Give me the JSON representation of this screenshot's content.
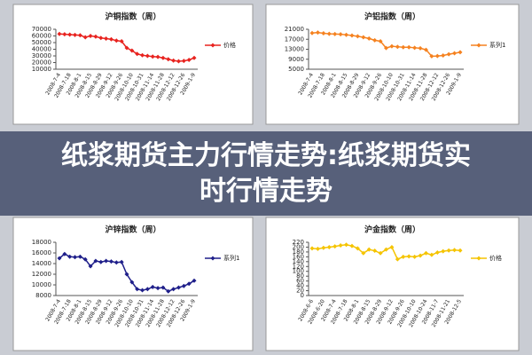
{
  "overlay_title": "纸浆期货主力行情走势:纸浆期货实时行情走势",
  "chart_data": [
    {
      "type": "line",
      "title": "沪铜指数（周）",
      "categories": [
        "2008-7-4",
        null,
        "2008-7-18",
        null,
        "2008-8-1",
        null,
        "2008-8-15",
        null,
        "2008-8-29",
        null,
        "2008-9-12",
        null,
        "2008-9-26",
        null,
        "2008-10-10",
        null,
        "2008-10-31",
        null,
        "2008-11-14",
        null,
        "2008-11-28",
        null,
        "2008-12-12",
        null,
        "2008-12-26",
        null,
        "2009-1-9"
      ],
      "series": [
        {
          "name": "价格",
          "color": "#e8231f",
          "values": [
            63000,
            62500,
            62000,
            61500,
            61000,
            58000,
            60000,
            59000,
            57000,
            56000,
            55000,
            53000,
            52000,
            42000,
            38000,
            33000,
            31000,
            30000,
            29000,
            28500,
            27000,
            25000,
            23000,
            22000,
            22500,
            24000,
            27000
          ]
        }
      ],
      "ylim": [
        10000,
        70000
      ],
      "yticks": [
        10000,
        20000,
        30000,
        40000,
        50000,
        60000,
        70000
      ]
    },
    {
      "type": "line",
      "title": "沪铝指数（周）",
      "categories": [
        "2008-7-4",
        null,
        "2008-7-18",
        null,
        "2008-8-1",
        null,
        "2008-8-15",
        null,
        "2008-8-29",
        null,
        "2008-9-12",
        null,
        "2008-9-26",
        null,
        "2008-10-10",
        null,
        "2008-10-31",
        null,
        "2008-11-14",
        null,
        "2008-11-28",
        null,
        "2008-12-12",
        null,
        "2008-12-26",
        null,
        "2009-1-9"
      ],
      "series": [
        {
          "name": "系列1",
          "color": "#f58220",
          "values": [
            19500,
            19700,
            19400,
            19200,
            19100,
            19000,
            18800,
            18500,
            18200,
            17800,
            17300,
            16600,
            16200,
            13500,
            14200,
            14000,
            13800,
            13800,
            13600,
            13400,
            12800,
            10200,
            10300,
            10500,
            11000,
            11400,
            11800
          ]
        }
      ],
      "ylim": [
        5000,
        21000
      ],
      "yticks": [
        5000,
        9000,
        13000,
        17000,
        21000
      ]
    },
    {
      "type": "line",
      "title": "沪锌指数（周）",
      "categories": [
        "2008-7-4",
        null,
        "2008-7-18",
        null,
        "2008-8-1",
        null,
        "2008-8-15",
        null,
        "2008-8-29",
        null,
        "2008-9-12",
        null,
        "2008-9-26",
        null,
        "2008-10-10",
        null,
        "2008-10-31",
        null,
        "2008-11-14",
        null,
        "2008-11-28",
        null,
        "2008-12-12",
        null,
        "2008-12-26",
        null,
        "2009-1-9"
      ],
      "series": [
        {
          "name": "系列1",
          "color": "#1f1f8a",
          "values": [
            15000,
            15800,
            15300,
            15200,
            15300,
            14800,
            13500,
            14500,
            14300,
            14500,
            14400,
            14200,
            14300,
            12000,
            10500,
            9200,
            9000,
            9200,
            9600,
            9400,
            9500,
            8800,
            9200,
            9500,
            9800,
            10200,
            10800
          ]
        }
      ],
      "ylim": [
        8000,
        18000
      ],
      "yticks": [
        8000,
        10000,
        12000,
        14000,
        16000,
        18000
      ]
    },
    {
      "type": "line",
      "title": "沪金指数（周）",
      "categories": [
        "2008-6-6",
        null,
        "2008-6-20",
        null,
        "2008-7-4",
        null,
        "2008-7-18",
        null,
        "2008-8-1",
        null,
        "2008-8-15",
        null,
        "2008-8-29",
        null,
        "2008-9-12",
        null,
        "2008-9-26",
        null,
        "2008-10-10",
        null,
        "2008-10-24",
        null,
        "2008-11-7",
        null,
        "2008-11-21",
        null,
        "2008-12-5"
      ],
      "series": [
        {
          "name": "价格",
          "color": "#f5c400",
          "values": [
            195,
            193,
            197,
            200,
            203,
            207,
            210,
            205,
            195,
            175,
            190,
            185,
            175,
            190,
            200,
            150,
            160,
            162,
            160,
            165,
            175,
            168,
            178,
            183,
            186,
            188,
            186
          ]
        }
      ],
      "ylim": [
        0,
        220
      ],
      "yticks": [
        0,
        20,
        40,
        60,
        80,
        100,
        120,
        140,
        160,
        180,
        200,
        220
      ]
    }
  ]
}
